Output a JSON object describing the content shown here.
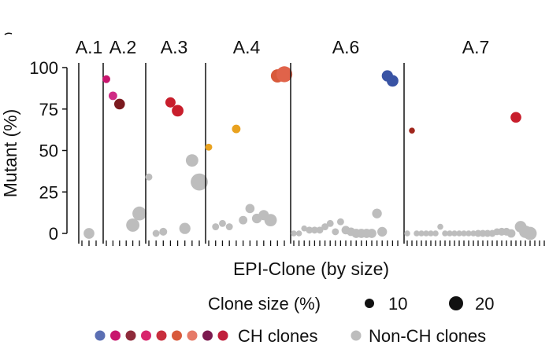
{
  "chart_data": {
    "type": "scatter",
    "ylabel": "Mutant (%)",
    "xlabel": "EPI-Clone (by size)",
    "ylim": [
      0,
      100
    ],
    "yticks": [
      0,
      25,
      50,
      75,
      100
    ],
    "panels": [
      {
        "title": "A.1",
        "n_ticks": 3,
        "points": [
          {
            "x": 2,
            "y": 0,
            "size": 8,
            "group": "non-ch"
          }
        ]
      },
      {
        "title": "A.2",
        "n_ticks": 6,
        "points": [
          {
            "x": 1,
            "y": 93,
            "size": 3,
            "group": "ch",
            "color": "#c8166e"
          },
          {
            "x": 2,
            "y": 83,
            "size": 4,
            "group": "ch",
            "color": "#d02b85"
          },
          {
            "x": 3,
            "y": 78,
            "size": 8,
            "group": "ch",
            "color": "#7b1a1f"
          },
          {
            "x": 5,
            "y": 5,
            "size": 14,
            "group": "non-ch"
          },
          {
            "x": 6,
            "y": 12,
            "size": 16,
            "group": "non-ch"
          }
        ]
      },
      {
        "title": "A.3",
        "n_ticks": 8,
        "points": [
          {
            "x": 1,
            "y": 34,
            "size": 2,
            "group": "non-ch"
          },
          {
            "x": 2,
            "y": 0,
            "size": 2,
            "group": "non-ch"
          },
          {
            "x": 3,
            "y": 1,
            "size": 3,
            "group": "non-ch"
          },
          {
            "x": 4,
            "y": 79,
            "size": 7,
            "group": "ch",
            "color": "#c81e2c"
          },
          {
            "x": 5,
            "y": 74,
            "size": 10,
            "group": "ch",
            "color": "#c81e2c"
          },
          {
            "x": 6,
            "y": 3,
            "size": 9,
            "group": "non-ch"
          },
          {
            "x": 7,
            "y": 44,
            "size": 12,
            "group": "non-ch"
          },
          {
            "x": 8,
            "y": 31,
            "size": 26,
            "group": "non-ch"
          }
        ]
      },
      {
        "title": "A.4",
        "n_ticks": 12,
        "points": [
          {
            "x": 1,
            "y": 52,
            "size": 2,
            "group": "ch",
            "color": "#e9a21f"
          },
          {
            "x": 2,
            "y": 4,
            "size": 2,
            "group": "non-ch"
          },
          {
            "x": 3,
            "y": 6,
            "size": 2,
            "group": "non-ch"
          },
          {
            "x": 4,
            "y": 4,
            "size": 2,
            "group": "non-ch"
          },
          {
            "x": 5,
            "y": 63,
            "size": 4,
            "group": "ch",
            "color": "#e9a21f"
          },
          {
            "x": 6,
            "y": 8,
            "size": 4,
            "group": "non-ch"
          },
          {
            "x": 7,
            "y": 15,
            "size": 5,
            "group": "non-ch"
          },
          {
            "x": 8,
            "y": 9,
            "size": 6,
            "group": "non-ch"
          },
          {
            "x": 9,
            "y": 11,
            "size": 7,
            "group": "non-ch"
          },
          {
            "x": 10,
            "y": 8,
            "size": 12,
            "group": "non-ch"
          },
          {
            "x": 11,
            "y": 95,
            "size": 14,
            "group": "ch",
            "color": "#d85a3b"
          },
          {
            "x": 12,
            "y": 96,
            "size": 22,
            "group": "ch",
            "color": "#e0634a"
          }
        ]
      },
      {
        "title": "A.6",
        "n_ticks": 21,
        "points": [
          {
            "x": 1,
            "y": 0,
            "size": 1,
            "group": "non-ch"
          },
          {
            "x": 2,
            "y": 0,
            "size": 1,
            "group": "non-ch"
          },
          {
            "x": 3,
            "y": 3,
            "size": 1,
            "group": "non-ch"
          },
          {
            "x": 4,
            "y": 2,
            "size": 2,
            "group": "non-ch"
          },
          {
            "x": 5,
            "y": 2,
            "size": 2,
            "group": "non-ch"
          },
          {
            "x": 6,
            "y": 2,
            "size": 2,
            "group": "non-ch"
          },
          {
            "x": 7,
            "y": 4,
            "size": 2,
            "group": "non-ch"
          },
          {
            "x": 8,
            "y": 6,
            "size": 2,
            "group": "non-ch"
          },
          {
            "x": 9,
            "y": 1,
            "size": 2,
            "group": "non-ch"
          },
          {
            "x": 10,
            "y": 7,
            "size": 2,
            "group": "non-ch"
          },
          {
            "x": 11,
            "y": 2,
            "size": 4,
            "group": "non-ch"
          },
          {
            "x": 12,
            "y": 1,
            "size": 4,
            "group": "non-ch"
          },
          {
            "x": 13,
            "y": 0,
            "size": 5,
            "group": "non-ch"
          },
          {
            "x": 14,
            "y": 0,
            "size": 5,
            "group": "non-ch"
          },
          {
            "x": 15,
            "y": 0,
            "size": 5,
            "group": "non-ch"
          },
          {
            "x": 16,
            "y": 0,
            "size": 5,
            "group": "non-ch"
          },
          {
            "x": 17,
            "y": 12,
            "size": 6,
            "group": "non-ch"
          },
          {
            "x": 18,
            "y": 1,
            "size": 6,
            "group": "non-ch"
          },
          {
            "x": 19,
            "y": 95,
            "size": 9,
            "group": "ch",
            "color": "#3953a4"
          },
          {
            "x": 20,
            "y": 92,
            "size": 10,
            "group": "ch",
            "color": "#3953a4"
          }
        ]
      },
      {
        "title": "A.7",
        "n_ticks": 30,
        "points": [
          {
            "x": 1,
            "y": 0,
            "size": 1,
            "group": "non-ch"
          },
          {
            "x": 2,
            "y": 62,
            "size": 1,
            "group": "ch",
            "color": "#a0261c"
          },
          {
            "x": 3,
            "y": 0,
            "size": 1,
            "group": "non-ch"
          },
          {
            "x": 4,
            "y": 0,
            "size": 1,
            "group": "non-ch"
          },
          {
            "x": 5,
            "y": 0,
            "size": 1,
            "group": "non-ch"
          },
          {
            "x": 6,
            "y": 0,
            "size": 1,
            "group": "non-ch"
          },
          {
            "x": 7,
            "y": 0,
            "size": 1,
            "group": "non-ch"
          },
          {
            "x": 8,
            "y": 4,
            "size": 1,
            "group": "non-ch"
          },
          {
            "x": 9,
            "y": 0,
            "size": 1,
            "group": "non-ch"
          },
          {
            "x": 10,
            "y": 0,
            "size": 1,
            "group": "non-ch"
          },
          {
            "x": 11,
            "y": 0,
            "size": 1,
            "group": "non-ch"
          },
          {
            "x": 12,
            "y": 0,
            "size": 1,
            "group": "non-ch"
          },
          {
            "x": 13,
            "y": 0,
            "size": 1,
            "group": "non-ch"
          },
          {
            "x": 14,
            "y": 0,
            "size": 1,
            "group": "non-ch"
          },
          {
            "x": 15,
            "y": 0,
            "size": 1,
            "group": "non-ch"
          },
          {
            "x": 16,
            "y": 0,
            "size": 2,
            "group": "non-ch"
          },
          {
            "x": 17,
            "y": 0,
            "size": 2,
            "group": "non-ch"
          },
          {
            "x": 18,
            "y": 0,
            "size": 2,
            "group": "non-ch"
          },
          {
            "x": 19,
            "y": 0,
            "size": 2,
            "group": "non-ch"
          },
          {
            "x": 20,
            "y": 1,
            "size": 2,
            "group": "non-ch"
          },
          {
            "x": 21,
            "y": 1,
            "size": 3,
            "group": "non-ch"
          },
          {
            "x": 22,
            "y": 1,
            "size": 3,
            "group": "non-ch"
          },
          {
            "x": 23,
            "y": 0,
            "size": 4,
            "group": "non-ch"
          },
          {
            "x": 24,
            "y": 70,
            "size": 8,
            "group": "ch",
            "color": "#c81e2c"
          },
          {
            "x": 25,
            "y": 4,
            "size": 10,
            "group": "non-ch"
          },
          {
            "x": 26,
            "y": 1,
            "size": 12,
            "group": "non-ch"
          },
          {
            "x": 27,
            "y": 0,
            "size": 14,
            "group": "non-ch"
          }
        ]
      }
    ],
    "size_legend": {
      "title": "Clone size (%)",
      "entries": [
        {
          "label": "10",
          "size": 10
        },
        {
          "label": "20",
          "size": 20
        }
      ]
    },
    "group_legend": [
      {
        "label": "CH clones",
        "colors": [
          "#5b6fb3",
          "#c8166e",
          "#8e2a3a",
          "#d8256d",
          "#c82e3d",
          "#d85a3b",
          "#e67a68",
          "#7b1a4f",
          "#c01e3b"
        ]
      },
      {
        "label": "Non-CH clones",
        "colors": [
          "#bdbdbd"
        ]
      }
    ],
    "colors": {
      "non_ch": "#bdbdbd",
      "axis": "#111111"
    }
  }
}
